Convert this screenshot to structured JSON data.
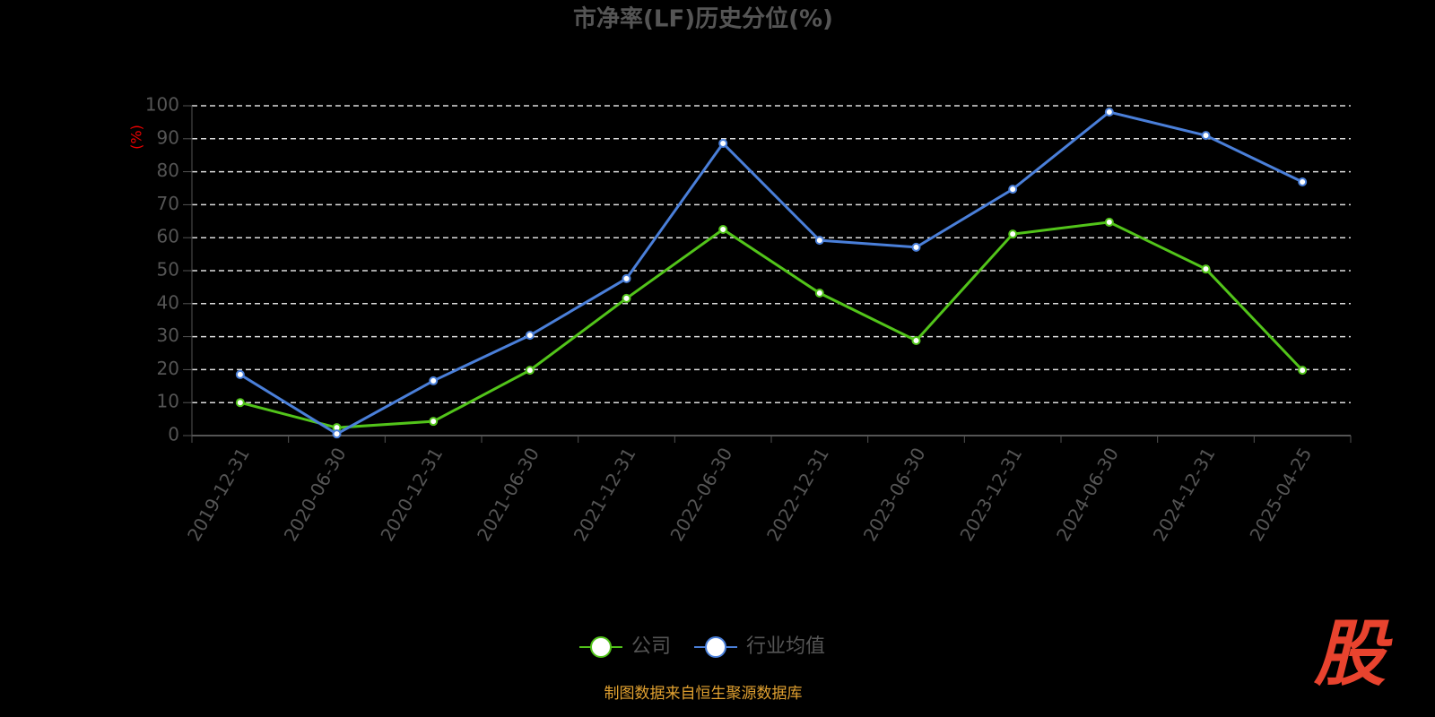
{
  "chart_data": {
    "type": "line",
    "title": "市净率(LF)历史分位(%)",
    "y_label": "(%)",
    "categories": [
      "2019-12-31",
      "2020-06-30",
      "2020-12-31",
      "2021-06-30",
      "2021-12-31",
      "2022-06-30",
      "2022-12-31",
      "2023-06-30",
      "2023-12-31",
      "2024-06-30",
      "2024-12-31",
      "2025-04-25"
    ],
    "series": [
      {
        "name": "公司",
        "color": "#52c41a",
        "values": [
          10.0,
          2.4,
          4.3,
          19.8,
          41.6,
          62.5,
          43.2,
          28.8,
          61.1,
          64.7,
          50.5,
          19.8
        ]
      },
      {
        "name": "行业均值",
        "color": "#4a7fd9",
        "values": [
          18.5,
          0.5,
          16.6,
          30.4,
          47.6,
          88.6,
          59.2,
          57.1,
          74.7,
          98.1,
          91.0,
          76.9
        ]
      }
    ],
    "ylim": [
      0,
      100
    ],
    "yticks": [
      0,
      10,
      20,
      30,
      40,
      50,
      60,
      70,
      80,
      90,
      100
    ],
    "grid": true,
    "source": "制图数据来自恒生聚源数据库",
    "logo": "股"
  }
}
